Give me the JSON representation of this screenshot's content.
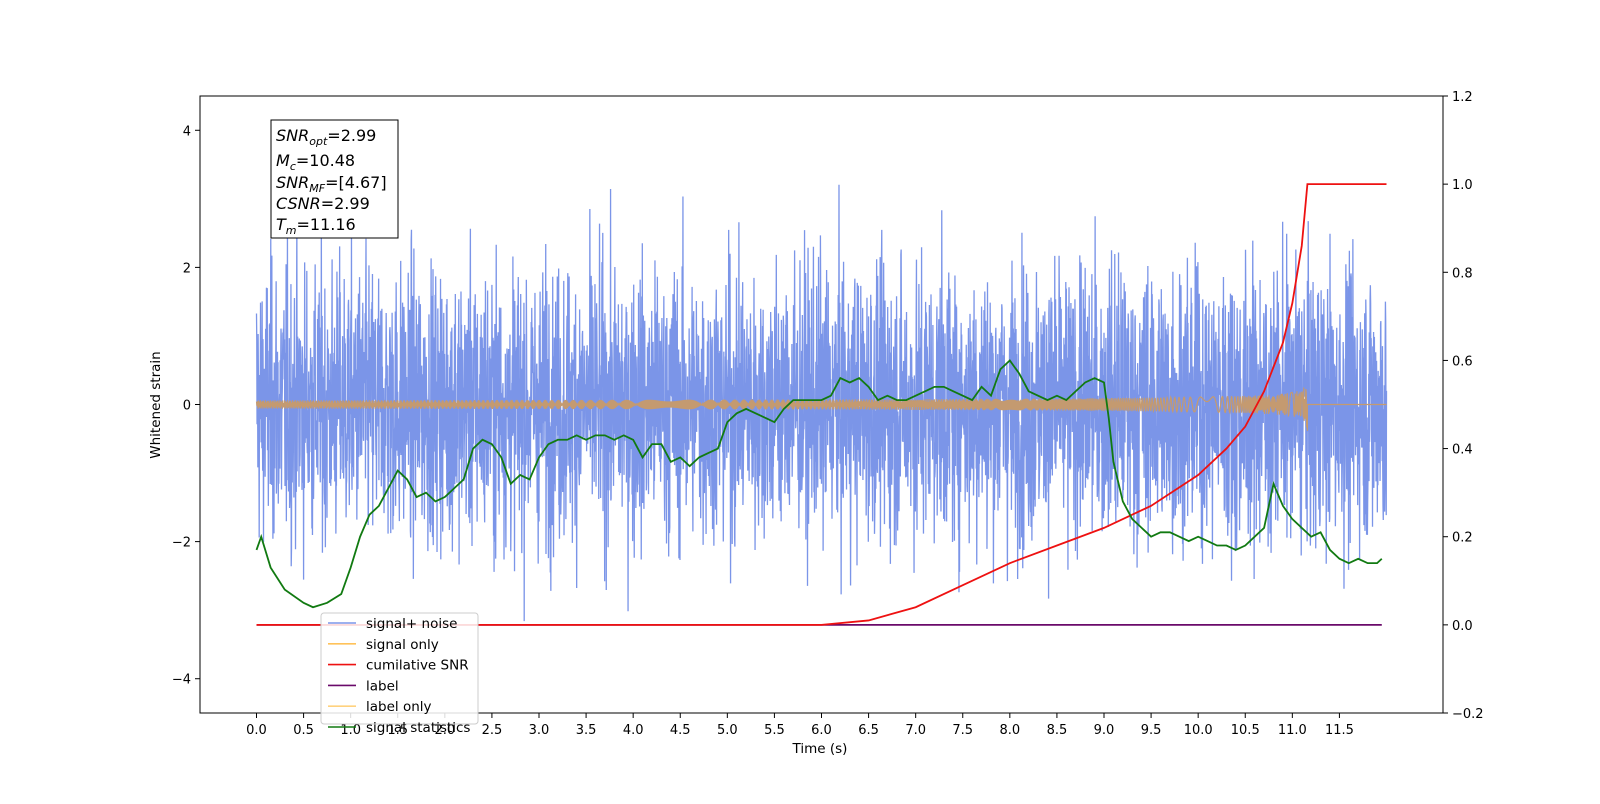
{
  "chart_data": {
    "type": "line",
    "xlabel": "Time (s)",
    "ylabel": "Whitened strain",
    "xlim": [
      -0.6,
      12.6
    ],
    "ylim": [
      -4.5,
      4.5
    ],
    "ylim_right": [
      -0.2,
      1.2
    ],
    "x_ticks": [
      "0.0",
      "0.5",
      "1.0",
      "1.5",
      "2.0",
      "2.5",
      "3.0",
      "3.5",
      "4.0",
      "4.5",
      "5.0",
      "5.5",
      "6.0",
      "6.5",
      "7.0",
      "7.5",
      "8.0",
      "8.5",
      "9.0",
      "9.5",
      "10.0",
      "10.5",
      "11.0",
      "11.5"
    ],
    "y_ticks": [
      "4",
      "2",
      "0",
      "−2",
      "−4"
    ],
    "y_ticks_right": [
      "1.2",
      "1.0",
      "0.8",
      "0.6",
      "0.4",
      "0.2",
      "0.0",
      "−0.2"
    ],
    "grid": false,
    "legend_position": "lower-left",
    "legend": [
      "signal+ noise",
      "signal only",
      "cumilative SNR",
      "label",
      "label only",
      "signal statistics"
    ],
    "annotation": {
      "snr_opt": "=2.99",
      "mc": "=10.48",
      "snr_mf": "=[4.67]",
      "csnr": "=2.99",
      "tm": "=11.16"
    },
    "series": [
      {
        "name": "signal+ noise",
        "axis": "left",
        "color": "#7b95e8",
        "x_range": [
          0.0,
          12.0
        ],
        "typical_amplitude": 1.0,
        "y_min": -3.95,
        "y_max": 4.12
      },
      {
        "name": "signal only",
        "axis": "left",
        "color": "#c49a70",
        "x_range": [
          0.0,
          11.16
        ],
        "y_peak": 0.45
      },
      {
        "name": "cumilative SNR",
        "axis": "right",
        "color": "#ee1111",
        "x": [
          0.0,
          6.0,
          6.5,
          7.0,
          7.5,
          8.0,
          8.5,
          9.0,
          9.5,
          10.0,
          10.3,
          10.5,
          10.7,
          10.9,
          11.0,
          11.1,
          11.16,
          12.0
        ],
        "y": [
          0.0,
          0.0,
          0.01,
          0.04,
          0.09,
          0.14,
          0.18,
          0.22,
          0.27,
          0.34,
          0.4,
          0.45,
          0.53,
          0.64,
          0.73,
          0.86,
          1.0,
          1.0
        ]
      },
      {
        "name": "label",
        "axis": "right",
        "color": "#6a0a6a",
        "x": [
          0.0,
          11.95
        ],
        "y": [
          0.0,
          0.0
        ]
      },
      {
        "name": "signal statistics",
        "axis": "right",
        "color": "#117a11",
        "x": [
          0.0,
          0.05,
          0.15,
          0.3,
          0.5,
          0.6,
          0.75,
          0.9,
          1.0,
          1.1,
          1.2,
          1.3,
          1.4,
          1.5,
          1.6,
          1.7,
          1.8,
          1.9,
          2.0,
          2.1,
          2.2,
          2.3,
          2.4,
          2.5,
          2.6,
          2.7,
          2.8,
          2.9,
          3.0,
          3.1,
          3.2,
          3.3,
          3.4,
          3.5,
          3.6,
          3.7,
          3.8,
          3.9,
          4.0,
          4.1,
          4.2,
          4.3,
          4.4,
          4.5,
          4.6,
          4.7,
          4.8,
          4.9,
          5.0,
          5.1,
          5.2,
          5.3,
          5.4,
          5.5,
          5.6,
          5.7,
          5.8,
          5.9,
          6.0,
          6.1,
          6.2,
          6.3,
          6.4,
          6.5,
          6.6,
          6.7,
          6.8,
          6.9,
          7.0,
          7.1,
          7.2,
          7.3,
          7.4,
          7.5,
          7.6,
          7.7,
          7.8,
          7.9,
          8.0,
          8.1,
          8.2,
          8.3,
          8.4,
          8.5,
          8.6,
          8.7,
          8.8,
          8.9,
          9.0,
          9.05,
          9.1,
          9.2,
          9.3,
          9.4,
          9.5,
          9.6,
          9.7,
          9.8,
          9.9,
          10.0,
          10.1,
          10.2,
          10.3,
          10.4,
          10.5,
          10.6,
          10.7,
          10.75,
          10.8,
          10.9,
          11.0,
          11.1,
          11.2,
          11.3,
          11.4,
          11.5,
          11.6,
          11.7,
          11.8,
          11.9,
          11.95
        ],
        "y": [
          0.17,
          0.2,
          0.13,
          0.08,
          0.05,
          0.04,
          0.05,
          0.07,
          0.13,
          0.2,
          0.25,
          0.27,
          0.31,
          0.35,
          0.33,
          0.29,
          0.3,
          0.28,
          0.29,
          0.31,
          0.33,
          0.4,
          0.42,
          0.41,
          0.38,
          0.32,
          0.34,
          0.33,
          0.38,
          0.41,
          0.42,
          0.42,
          0.43,
          0.42,
          0.43,
          0.43,
          0.42,
          0.43,
          0.42,
          0.38,
          0.41,
          0.41,
          0.37,
          0.38,
          0.36,
          0.38,
          0.39,
          0.4,
          0.46,
          0.48,
          0.49,
          0.48,
          0.47,
          0.46,
          0.49,
          0.51,
          0.51,
          0.51,
          0.51,
          0.52,
          0.56,
          0.55,
          0.56,
          0.54,
          0.51,
          0.52,
          0.51,
          0.51,
          0.52,
          0.53,
          0.54,
          0.54,
          0.53,
          0.52,
          0.51,
          0.54,
          0.52,
          0.58,
          0.6,
          0.57,
          0.53,
          0.52,
          0.51,
          0.52,
          0.51,
          0.53,
          0.55,
          0.56,
          0.55,
          0.47,
          0.37,
          0.28,
          0.24,
          0.22,
          0.2,
          0.21,
          0.21,
          0.2,
          0.19,
          0.2,
          0.19,
          0.18,
          0.18,
          0.17,
          0.18,
          0.2,
          0.22,
          0.27,
          0.32,
          0.27,
          0.24,
          0.22,
          0.2,
          0.21,
          0.17,
          0.15,
          0.14,
          0.15,
          0.14,
          0.14,
          0.15
        ]
      }
    ]
  }
}
